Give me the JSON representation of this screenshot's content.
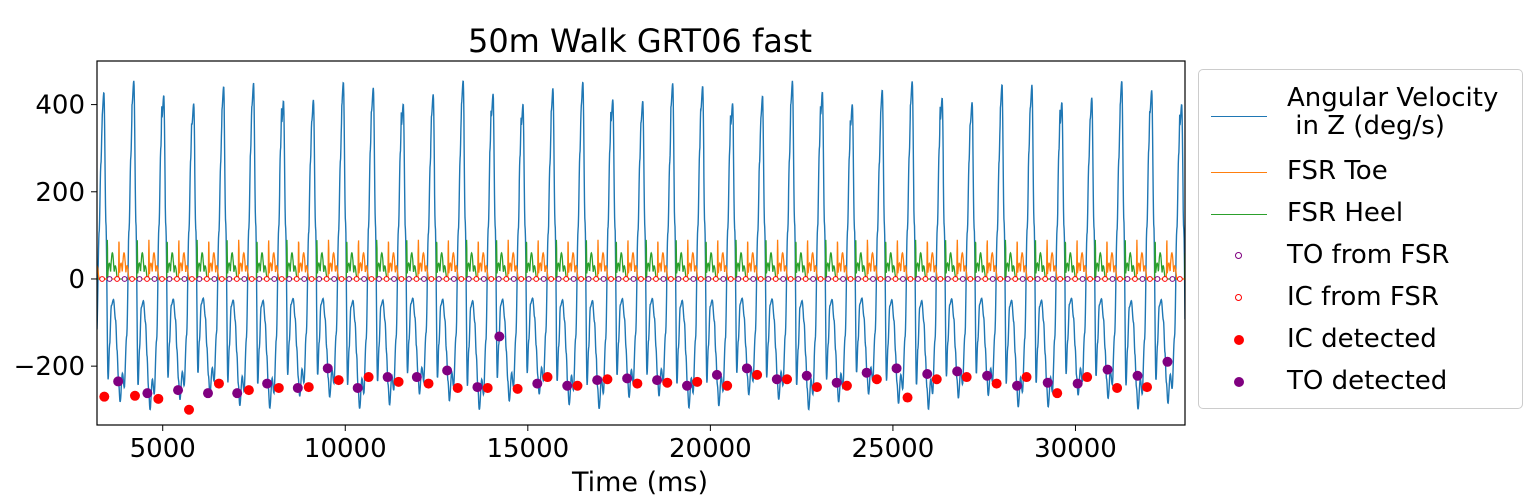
{
  "chart_data": {
    "type": "line",
    "title": "50m Walk GRT06 fast",
    "xlabel": "Time (ms)",
    "ylabel": "",
    "xlim": [
      3200,
      33000
    ],
    "ylim": [
      -335,
      500
    ],
    "xticks": [
      5000,
      10000,
      15000,
      20000,
      25000,
      30000
    ],
    "xtick_labels": [
      "5000",
      "10000",
      "15000",
      "20000",
      "25000",
      "30000"
    ],
    "yticks": [
      400,
      200,
      0,
      -200
    ],
    "ytick_labels": [
      "400",
      "200",
      "0",
      "−200"
    ],
    "grid": false,
    "legend_position": "outside-right",
    "gait_period_ms": 820,
    "gait_start_ms": 3340,
    "series": [
      {
        "name": "Angular Velocity\n in Z (deg/s)",
        "kind": "line",
        "color": "#1f77b4",
        "approx_peak": 440,
        "approx_trough": -300
      },
      {
        "name": "FSR Toe",
        "kind": "line",
        "color": "#ff7f0e",
        "approx_peak": 60
      },
      {
        "name": "FSR Heel",
        "kind": "line",
        "color": "#2ca02c",
        "approx_peak": 60
      },
      {
        "name": "TO from FSR",
        "kind": "hollow-marker",
        "color": "#800080"
      },
      {
        "name": "IC from FSR",
        "kind": "hollow-marker",
        "color": "#ff0000"
      },
      {
        "name": "IC detected",
        "kind": "marker",
        "color": "#ff0000",
        "x": [
          3400,
          4240,
          4880,
          5720,
          6540,
          7360,
          8180,
          9000,
          9820,
          10640,
          11460,
          12280,
          13080,
          13900,
          14720,
          15540,
          16360,
          17180,
          18000,
          18820,
          19640,
          20460,
          21280,
          22100,
          22920,
          23740,
          24560,
          25400,
          26200,
          27020,
          27840,
          28660,
          29500,
          30320,
          31140,
          31960
        ],
        "y": [
          -270,
          -268,
          -275,
          -300,
          -240,
          -255,
          -250,
          -248,
          -232,
          -225,
          -236,
          -240,
          -250,
          -250,
          -252,
          -225,
          -245,
          -230,
          -240,
          -238,
          -236,
          -245,
          -220,
          -230,
          -248,
          -245,
          -230,
          -272,
          -230,
          -225,
          -240,
          -225,
          -262,
          -225,
          -250,
          -248
        ]
      },
      {
        "name": "TO detected",
        "kind": "marker",
        "color": "#800080",
        "x": [
          3780,
          4580,
          5420,
          6240,
          7040,
          7860,
          8700,
          9520,
          10340,
          11160,
          11960,
          12790,
          13620,
          14220,
          15260,
          16080,
          16900,
          17720,
          18540,
          19360,
          20180,
          21000,
          21820,
          22640,
          23460,
          24280,
          25100,
          25940,
          26760,
          27580,
          28400,
          29240,
          30060,
          30880,
          31700,
          32520
        ],
        "y": [
          -235,
          -262,
          -255,
          -262,
          -262,
          -240,
          -250,
          -205,
          -250,
          -225,
          -225,
          -210,
          -248,
          -132,
          -240,
          -245,
          -232,
          -228,
          -232,
          -245,
          -220,
          -205,
          -230,
          -222,
          -238,
          -215,
          -205,
          -218,
          -212,
          -222,
          -245,
          -238,
          -240,
          -208,
          -222,
          -190
        ]
      }
    ]
  }
}
